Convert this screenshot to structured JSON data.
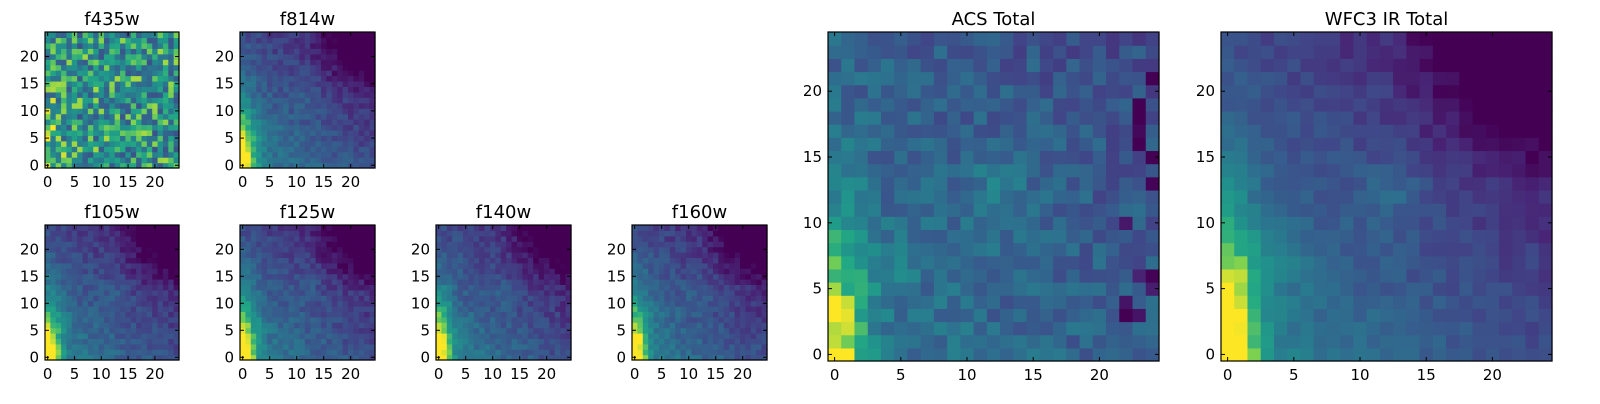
{
  "figure": {
    "colormap": "viridis",
    "grid_size": 25
  },
  "chart_data": [
    {
      "type": "heatmap",
      "title": "f435w",
      "x_ticks": [
        0,
        5,
        10,
        15,
        20
      ],
      "y_ticks": [
        0,
        5,
        10,
        15,
        20
      ],
      "xlim": [
        0,
        25
      ],
      "ylim": [
        0,
        25
      ],
      "grid": false,
      "pattern": "noisy"
    },
    {
      "type": "heatmap",
      "title": "f814w",
      "x_ticks": [
        0,
        5,
        10,
        15,
        20
      ],
      "y_ticks": [
        0,
        5,
        10,
        15,
        20
      ],
      "xlim": [
        0,
        25
      ],
      "ylim": [
        0,
        25
      ],
      "grid": false,
      "pattern": "smooth"
    },
    {
      "type": "heatmap",
      "title": "f105w",
      "x_ticks": [
        0,
        5,
        10,
        15,
        20
      ],
      "y_ticks": [
        0,
        5,
        10,
        15,
        20
      ],
      "xlim": [
        0,
        25
      ],
      "ylim": [
        0,
        25
      ],
      "grid": false,
      "pattern": "smooth"
    },
    {
      "type": "heatmap",
      "title": "f125w",
      "x_ticks": [
        0,
        5,
        10,
        15,
        20
      ],
      "y_ticks": [
        0,
        5,
        10,
        15,
        20
      ],
      "xlim": [
        0,
        25
      ],
      "ylim": [
        0,
        25
      ],
      "grid": false,
      "pattern": "smooth"
    },
    {
      "type": "heatmap",
      "title": "f140w",
      "x_ticks": [
        0,
        5,
        10,
        15,
        20
      ],
      "y_ticks": [
        0,
        5,
        10,
        15,
        20
      ],
      "xlim": [
        0,
        25
      ],
      "ylim": [
        0,
        25
      ],
      "grid": false,
      "pattern": "smooth"
    },
    {
      "type": "heatmap",
      "title": "f160w",
      "x_ticks": [
        0,
        5,
        10,
        15,
        20
      ],
      "y_ticks": [
        0,
        5,
        10,
        15,
        20
      ],
      "xlim": [
        0,
        25
      ],
      "ylim": [
        0,
        25
      ],
      "grid": false,
      "pattern": "smooth"
    },
    {
      "type": "heatmap",
      "title": "ACS Total",
      "x_ticks": [
        0,
        5,
        10,
        15,
        20
      ],
      "y_ticks": [
        0,
        5,
        10,
        15,
        20
      ],
      "xlim": [
        0,
        25
      ],
      "ylim": [
        0,
        25
      ],
      "grid": false,
      "pattern": "acs"
    },
    {
      "type": "heatmap",
      "title": "WFC3 IR Total",
      "x_ticks": [
        0,
        5,
        10,
        15,
        20
      ],
      "y_ticks": [
        0,
        5,
        10,
        15,
        20
      ],
      "xlim": [
        0,
        25
      ],
      "ylim": [
        0,
        25
      ],
      "grid": false,
      "pattern": "ir"
    }
  ]
}
